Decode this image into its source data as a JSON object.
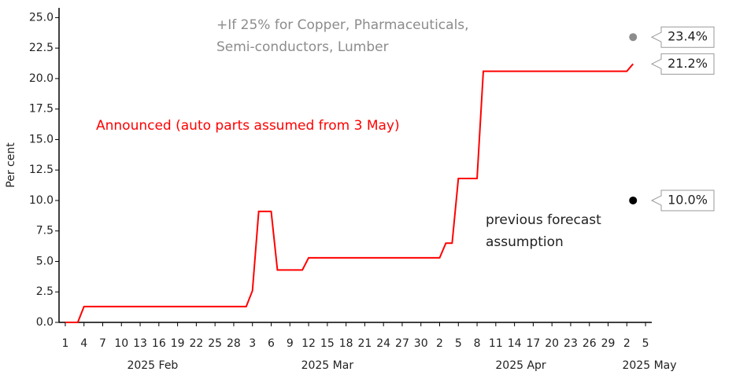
{
  "chart_data": {
    "type": "line",
    "y_label": "Per cent",
    "xlim": [
      "2025-01-31",
      "2025-05-06"
    ],
    "ylim": [
      0,
      25.8
    ],
    "yticks": [
      {
        "value": 0,
        "label": "0.0"
      },
      2.5,
      {
        "value": 5,
        "label": "5.0"
      },
      7.5,
      {
        "value": 10,
        "label": "10.0"
      },
      12.5,
      {
        "value": 15,
        "label": "15.0"
      },
      17.5,
      {
        "value": 20,
        "label": "20.0"
      },
      22.5,
      {
        "value": 25,
        "label": "25.0"
      }
    ],
    "xticks": [
      {
        "value": "2025-02-01",
        "label": "1"
      },
      {
        "value": "2025-02-04",
        "label": "4"
      },
      {
        "value": "2025-02-07",
        "label": "7"
      },
      {
        "value": "2025-02-10",
        "label": "10"
      },
      {
        "value": "2025-02-13",
        "label": "13"
      },
      {
        "value": "2025-02-16",
        "label": "16"
      },
      {
        "value": "2025-02-19",
        "label": "19"
      },
      {
        "value": "2025-02-22",
        "label": "22"
      },
      {
        "value": "2025-02-25",
        "label": "25"
      },
      {
        "value": "2025-02-28",
        "label": "28"
      },
      {
        "value": "2025-03-03",
        "label": "3"
      },
      {
        "value": "2025-03-06",
        "label": "6"
      },
      {
        "value": "2025-03-09",
        "label": "9"
      },
      {
        "value": "2025-03-12",
        "label": "12"
      },
      {
        "value": "2025-03-15",
        "label": "15"
      },
      {
        "value": "2025-03-18",
        "label": "18"
      },
      {
        "value": "2025-03-21",
        "label": "21"
      },
      {
        "value": "2025-03-24",
        "label": "24"
      },
      {
        "value": "2025-03-27",
        "label": "27"
      },
      {
        "value": "2025-03-30",
        "label": "30"
      },
      {
        "value": "2025-04-02",
        "label": "2"
      },
      {
        "value": "2025-04-05",
        "label": "5"
      },
      {
        "value": "2025-04-08",
        "label": "8"
      },
      {
        "value": "2025-04-11",
        "label": "11"
      },
      {
        "value": "2025-04-14",
        "label": "14"
      },
      {
        "value": "2025-04-17",
        "label": "17"
      },
      {
        "value": "2025-04-20",
        "label": "20"
      },
      {
        "value": "2025-04-23",
        "label": "23"
      },
      {
        "value": "2025-04-26",
        "label": "26"
      },
      {
        "value": "2025-04-29",
        "label": "29"
      },
      {
        "value": "2025-05-02",
        "label": "2"
      },
      {
        "value": "2025-05-05",
        "label": "5"
      }
    ],
    "month_labels": [
      {
        "value": "2025-02",
        "label": "2025 Feb"
      },
      {
        "value": "2025-03",
        "label": "2025 Mar"
      },
      {
        "value": "2025-04",
        "label": "2025 Apr"
      },
      {
        "value": "2025-05",
        "label": "2025 May"
      }
    ],
    "series": [
      {
        "name": "Announced (auto parts assumed from 3 May)",
        "color": "#ff0000",
        "marker": "line",
        "x": [
          "2025-02-01",
          "2025-02-03",
          "2025-02-04",
          "2025-03-02",
          "2025-03-03",
          "2025-03-04",
          "2025-03-06",
          "2025-03-07",
          "2025-03-11",
          "2025-03-12",
          "2025-04-02",
          "2025-04-03",
          "2025-04-04",
          "2025-04-05",
          "2025-04-08",
          "2025-04-09",
          "2025-05-02",
          "2025-05-03"
        ],
        "values": [
          0,
          0,
          1.3,
          1.3,
          2.6,
          9.1,
          9.1,
          4.3,
          4.3,
          5.3,
          5.3,
          6.5,
          6.5,
          11.8,
          11.8,
          20.6,
          20.6,
          21.2
        ],
        "value_labels": [
          null,
          null,
          null,
          null,
          null,
          null,
          null,
          null,
          null,
          null,
          null,
          null,
          null,
          null,
          null,
          null,
          null,
          "21.2%"
        ]
      },
      {
        "name": "+If 25% for Copper, Pharmaceuticals, Semi-conductors, Lumber",
        "color": "#8c8c8c",
        "marker": "dot",
        "x": [
          "2025-05-03"
        ],
        "values": [
          23.4
        ],
        "value_labels": [
          "23.4%"
        ]
      },
      {
        "name": "previous forecast assumption",
        "color": "#000000",
        "marker": "dot",
        "x": [
          "2025-05-03"
        ],
        "values": [
          10.0
        ],
        "value_labels": [
          "10.0%"
        ]
      }
    ]
  }
}
